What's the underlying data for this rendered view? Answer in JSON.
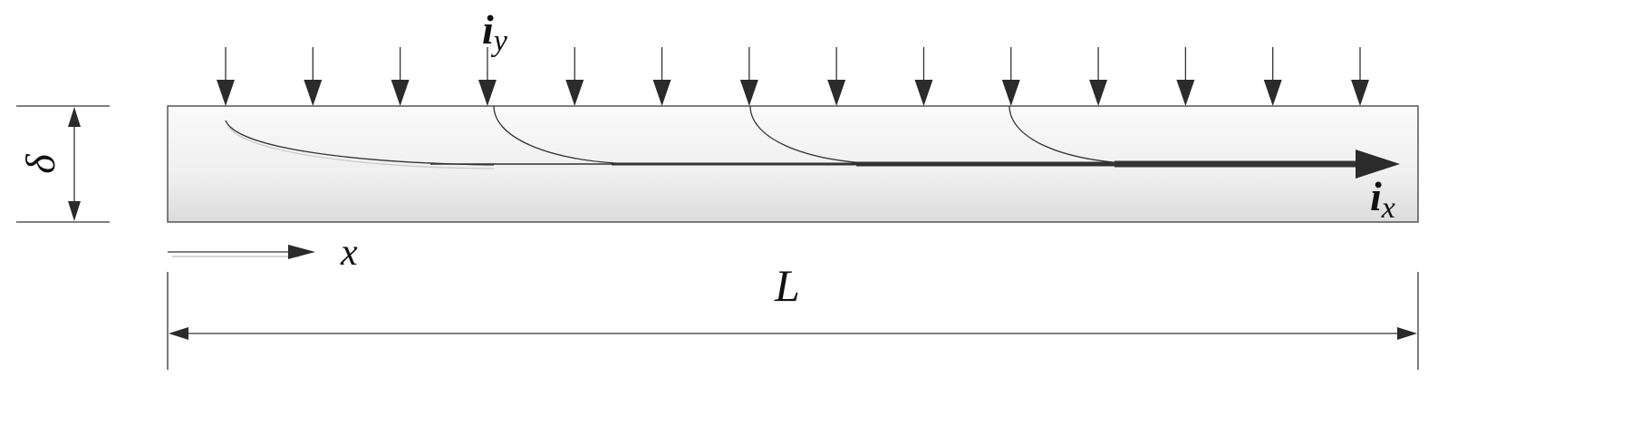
{
  "labels": {
    "iy_main": "i",
    "iy_sub": "y",
    "ix_main": "i",
    "ix_sub": "x",
    "x": "x",
    "L": "L",
    "delta": "δ"
  },
  "load_arrow_count": 14,
  "colors": {
    "stroke": "#2b2b2b",
    "box_top": "#fafafa",
    "box_bottom": "#dcdcdc"
  }
}
